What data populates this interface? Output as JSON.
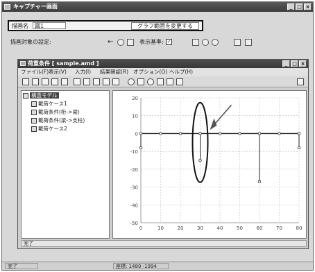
{
  "app": {
    "title": "キャプチャー画面"
  },
  "form": {
    "label": "描画名",
    "value": "図1",
    "button": "グラフ範囲を変更する"
  },
  "row2": {
    "label": "描画対象の設定:",
    "label2": "表示基準:",
    "checked": "✓"
  },
  "inner": {
    "title": "荷重条件 [ sample.amd ]",
    "menu": [
      "ファイル(F)",
      "表示(V)",
      "入力(I)",
      "結果確認(R)",
      "オプション(O)",
      "ヘルプ(H)"
    ]
  },
  "tree": {
    "items": [
      {
        "label": "構造モデル",
        "selected": true
      },
      {
        "label": "載荷ケース1",
        "selected": false
      },
      {
        "label": "載荷条件(桁->梁)",
        "selected": false
      },
      {
        "label": "載荷条件(梁->支柱)",
        "selected": false
      },
      {
        "label": "載荷ケース2",
        "selected": false
      }
    ]
  },
  "chart_data": {
    "type": "line",
    "y_ticks": [
      "20",
      "10",
      "0",
      "-10",
      "-20",
      "-30",
      "-40",
      "-50"
    ],
    "x_ticks": [
      "0",
      "10",
      "20",
      "30",
      "40",
      "50",
      "60",
      "70",
      "80"
    ],
    "ylim": [
      -50,
      20
    ],
    "xlim": [
      0,
      80
    ],
    "baseline_y": 0,
    "node_x": [
      0,
      10,
      20,
      30,
      40,
      50,
      60,
      70,
      80
    ],
    "drops": [
      {
        "x": 0,
        "y": -8
      },
      {
        "x": 30,
        "y": -15
      },
      {
        "x": 60,
        "y": -27
      },
      {
        "x": 80,
        "y": -8
      }
    ],
    "highlight_x": 30,
    "colors": {
      "line": "#222222",
      "grid": "#bdbdbd",
      "highlight": "#111111"
    }
  },
  "inner_status": "完了",
  "status": {
    "left": "完了",
    "mid": "座標: 1480 -1994"
  }
}
